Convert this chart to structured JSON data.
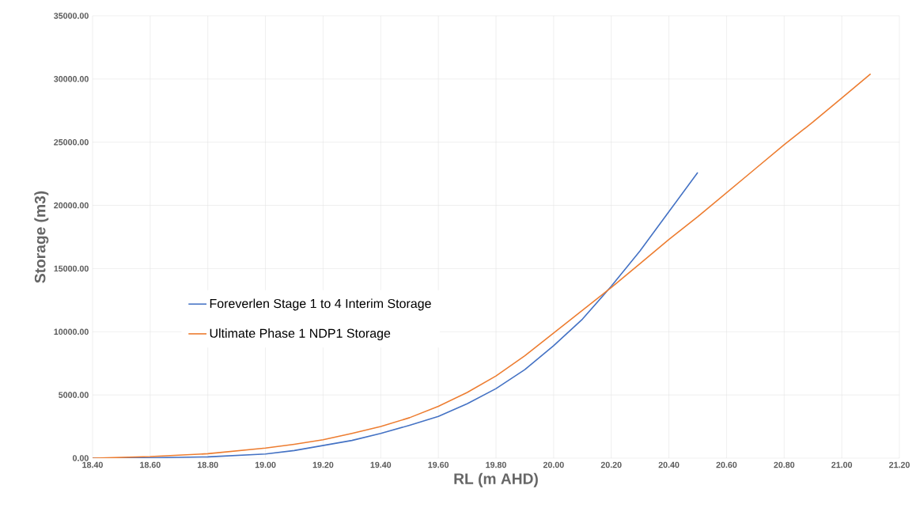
{
  "chart_data": {
    "type": "line",
    "xlabel": "RL (m AHD)",
    "ylabel": "Storage (m3)",
    "xlim": [
      18.4,
      21.2
    ],
    "ylim": [
      0,
      35000
    ],
    "xticks": [
      {
        "value": 18.4,
        "label": "18.40"
      },
      {
        "value": 18.6,
        "label": "18.60"
      },
      {
        "value": 18.8,
        "label": "18.80"
      },
      {
        "value": 19.0,
        "label": "19.00"
      },
      {
        "value": 19.2,
        "label": "19.20"
      },
      {
        "value": 19.4,
        "label": "19.40"
      },
      {
        "value": 19.6,
        "label": "19.60"
      },
      {
        "value": 19.8,
        "label": "19.80"
      },
      {
        "value": 20.0,
        "label": "20.00"
      },
      {
        "value": 20.2,
        "label": "20.20"
      },
      {
        "value": 20.4,
        "label": "20.40"
      },
      {
        "value": 20.6,
        "label": "20.60"
      },
      {
        "value": 20.8,
        "label": "20.80"
      },
      {
        "value": 21.0,
        "label": "21.00"
      },
      {
        "value": 21.2,
        "label": "21.20"
      }
    ],
    "yticks": [
      {
        "value": 0,
        "label": "0.00"
      },
      {
        "value": 5000,
        "label": "5000.00"
      },
      {
        "value": 10000,
        "label": "10000.00"
      },
      {
        "value": 15000,
        "label": "15000.00"
      },
      {
        "value": 20000,
        "label": "20000.00"
      },
      {
        "value": 25000,
        "label": "25000.00"
      },
      {
        "value": 30000,
        "label": "30000.00"
      },
      {
        "value": 35000,
        "label": "35000.00"
      }
    ],
    "grid": true,
    "legend": "left",
    "marker": "none",
    "line_style": "solid",
    "series": [
      {
        "name": "Foreverlen Stage 1 to 4 Interim Storage",
        "color": "#4472c4",
        "x": [
          18.4,
          18.6,
          18.8,
          19.0,
          19.1,
          19.2,
          19.3,
          19.4,
          19.5,
          19.6,
          19.7,
          19.8,
          19.9,
          20.0,
          20.1,
          20.2,
          20.3,
          20.4,
          20.5
        ],
        "values": [
          0,
          30,
          100,
          330,
          600,
          1000,
          1400,
          1950,
          2600,
          3300,
          4300,
          5500,
          7000,
          8900,
          11000,
          13600,
          16400,
          19500,
          22600
        ]
      },
      {
        "name": "Ultimate Phase 1 NDP1 Storage",
        "color": "#ed7d31",
        "x": [
          18.4,
          18.6,
          18.8,
          19.0,
          19.1,
          19.2,
          19.3,
          19.4,
          19.5,
          19.6,
          19.7,
          19.8,
          19.9,
          20.0,
          20.1,
          20.2,
          20.3,
          20.4,
          20.5,
          20.6,
          20.7,
          20.8,
          20.9,
          21.0,
          21.1
        ],
        "values": [
          0,
          120,
          350,
          800,
          1100,
          1450,
          1950,
          2500,
          3200,
          4100,
          5200,
          6500,
          8100,
          9900,
          11700,
          13500,
          15400,
          17300,
          19100,
          21000,
          22900,
          24800,
          26600,
          28500,
          30400
        ]
      }
    ]
  }
}
